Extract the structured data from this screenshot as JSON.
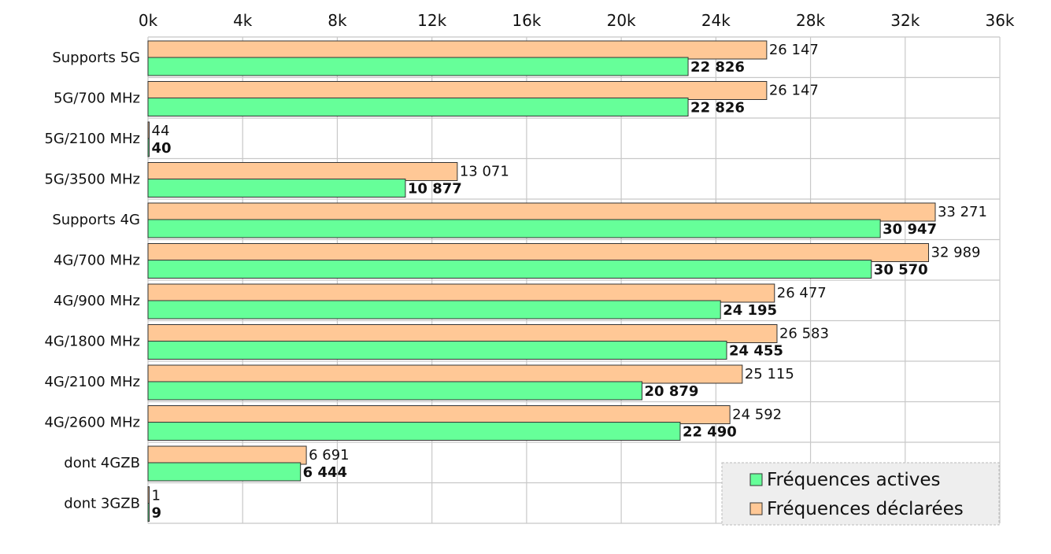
{
  "chart_data": {
    "type": "bar",
    "orientation": "horizontal",
    "title": "",
    "xlabel": "",
    "ylabel": "",
    "xlim": [
      0,
      36000
    ],
    "x_ticks": [
      "0k",
      "4k",
      "8k",
      "12k",
      "16k",
      "20k",
      "24k",
      "28k",
      "32k",
      "36k"
    ],
    "x_axis_position": "top",
    "grid": true,
    "legend_position": "bottom-right",
    "categories": [
      "Supports 5G",
      "5G/700 MHz",
      "5G/2100 MHz",
      "5G/3500 MHz",
      "Supports 4G",
      "4G/700 MHz",
      "4G/900 MHz",
      "4G/1800 MHz",
      "4G/2100 MHz",
      "4G/2600 MHz",
      "dont 4GZB",
      "dont 3GZB"
    ],
    "series": [
      {
        "name": "Fréquences déclarées",
        "color": "#ffc896",
        "values": [
          26147,
          26147,
          44,
          13071,
          33271,
          32989,
          26477,
          26583,
          25115,
          24592,
          6691,
          1
        ],
        "labels": [
          "26 147",
          "26 147",
          "44",
          "13 071",
          "33 271",
          "32 989",
          "26 477",
          "26 583",
          "25 115",
          "24 592",
          "6 691",
          "1"
        ]
      },
      {
        "name": "Fréquences actives",
        "color": "#66ff99",
        "values": [
          22826,
          22826,
          40,
          10877,
          30947,
          30570,
          24195,
          24455,
          20879,
          22490,
          6444,
          9
        ],
        "labels": [
          "22 826",
          "22 826",
          "40",
          "10 877",
          "30 947",
          "30 570",
          "24 195",
          "24 455",
          "20 879",
          "22 490",
          "6 444",
          "9"
        ]
      }
    ],
    "legend": [
      {
        "name": "Fréquences actives",
        "color": "#66ff99"
      },
      {
        "name": "Fréquences déclarées",
        "color": "#ffc896"
      }
    ]
  }
}
